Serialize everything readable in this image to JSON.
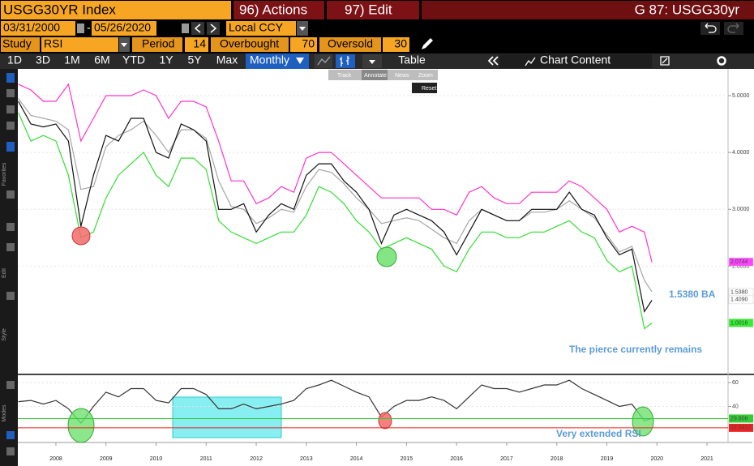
{
  "header": {
    "security": "USGG30YR Index",
    "actions": "96) Actions",
    "edit": "97) Edit",
    "page": "G 87: USGG30yr"
  },
  "controls": {
    "start_date": "03/31/2000",
    "separator": "-",
    "end_date": "05/26/2020",
    "currency": "Local CCY",
    "study_label": "Study",
    "study": "RSI",
    "period_label": "Period",
    "period": 14,
    "overbought_label": "Overbought",
    "overbought": 70,
    "oversold_label": "Oversold",
    "oversold": 30
  },
  "periods": [
    "1D",
    "3D",
    "1M",
    "6M",
    "YTD",
    "1Y",
    "5Y",
    "Max"
  ],
  "frequency": "Monthly",
  "table_button": "Table",
  "chart_content": "Chart Content",
  "chart_toolbar": [
    "Track",
    "Annotate",
    "News",
    "Zoom"
  ],
  "reset": "Reset",
  "side_labels": [
    "Favorites",
    "Edit",
    "Style",
    "Modes"
  ],
  "chart_data": [
    {
      "type": "line",
      "x": [
        2007.75,
        2008,
        2008.25,
        2008.5,
        2008.75,
        2009,
        2009.25,
        2009.5,
        2009.75,
        2010,
        2010.25,
        2010.5,
        2010.75,
        2011,
        2011.25,
        2011.5,
        2011.75,
        2012,
        2012.25,
        2012.5,
        2012.75,
        2013,
        2013.25,
        2013.5,
        2013.75,
        2014,
        2014.25,
        2014.5,
        2014.75,
        2015,
        2015.25,
        2015.5,
        2015.75,
        2016,
        2016.25,
        2016.5,
        2016.75,
        2017,
        2017.25,
        2017.5,
        2017.75,
        2018,
        2018.25,
        2018.5,
        2018.75,
        2019,
        2019.25,
        2019.5,
        2019.75,
        2020,
        2020.25,
        2020.4
      ],
      "xlim": [
        2007.74,
        2021.92
      ],
      "ylim": [
        0.11,
        5.47
      ],
      "yticks": [
        {
          "value": 5,
          "label": "5.0000"
        },
        {
          "value": 4,
          "label": "4.0000"
        },
        {
          "value": 3,
          "label": "3.0000"
        },
        {
          "value": 2,
          "label": "2.0000"
        }
      ],
      "series": [
        {
          "color": "#ff33cc",
          "values": [
            5.2,
            5.1,
            4.9,
            4.9,
            5.2,
            4.2,
            4.6,
            5.0,
            5.0,
            5.0,
            5.1,
            5.0,
            4.6,
            4.9,
            4.9,
            4.8,
            4.2,
            3.5,
            3.5,
            3.1,
            3.2,
            3.4,
            3.3,
            3.9,
            4.0,
            4.0,
            3.8,
            3.6,
            3.4,
            3.2,
            3.2,
            3.2,
            3.2,
            3.0,
            3.0,
            2.9,
            3.3,
            3.4,
            3.2,
            3.1,
            3.1,
            3.3,
            3.3,
            3.3,
            3.5,
            3.4,
            3.2,
            3.0,
            2.6,
            2.7,
            2.6,
            2.07
          ]
        },
        {
          "color": "#33dd33",
          "values": [
            4.7,
            4.2,
            4.3,
            4.2,
            3.6,
            2.5,
            2.6,
            3.2,
            3.6,
            3.8,
            4.0,
            3.6,
            3.4,
            3.9,
            3.9,
            3.7,
            2.8,
            2.6,
            2.5,
            2.4,
            2.5,
            2.6,
            2.6,
            2.9,
            3.4,
            3.3,
            3.1,
            2.8,
            2.6,
            2.3,
            2.4,
            2.5,
            2.4,
            2.3,
            2.0,
            1.9,
            2.3,
            2.6,
            2.6,
            2.5,
            2.5,
            2.6,
            2.6,
            2.7,
            2.8,
            2.6,
            2.5,
            2.1,
            1.9,
            2.0,
            0.9,
            1.0
          ]
        },
        {
          "color": "#a6a6a6",
          "values": [
            4.95,
            4.65,
            4.6,
            4.55,
            4.4,
            3.35,
            3.4,
            4.1,
            4.3,
            4.4,
            4.55,
            4.3,
            4.0,
            4.4,
            4.4,
            4.25,
            3.5,
            3.05,
            3.0,
            2.75,
            2.85,
            3.0,
            2.95,
            3.4,
            3.7,
            3.65,
            3.45,
            3.2,
            3.0,
            2.75,
            2.8,
            2.85,
            2.8,
            2.65,
            2.5,
            2.4,
            2.8,
            3.0,
            2.9,
            2.8,
            2.8,
            2.95,
            2.95,
            3.0,
            3.15,
            3.0,
            2.85,
            2.55,
            2.25,
            2.35,
            1.75,
            1.55
          ]
        },
        {
          "color": "#111111",
          "values": [
            4.9,
            4.5,
            4.45,
            4.5,
            4.2,
            2.7,
            3.6,
            4.3,
            4.2,
            4.6,
            4.6,
            4.0,
            3.9,
            4.5,
            4.4,
            4.2,
            3.0,
            3.0,
            3.1,
            2.6,
            2.9,
            3.1,
            3.0,
            3.6,
            3.8,
            3.8,
            3.5,
            3.3,
            3.0,
            2.4,
            2.9,
            3.0,
            2.9,
            2.8,
            2.6,
            2.2,
            2.6,
            3.0,
            2.9,
            2.8,
            2.8,
            3.0,
            3.0,
            3.0,
            3.3,
            3.0,
            2.9,
            2.5,
            2.2,
            2.3,
            1.2,
            1.4
          ]
        }
      ],
      "badges": [
        {
          "value": 2.0744,
          "color": "#ff44ff"
        },
        {
          "value": 1.538,
          "label": "1.5380",
          "color": "#ffffff"
        },
        {
          "value": 1.409,
          "label": "1.4090",
          "color": "#ffffff"
        },
        {
          "value": 1.0016,
          "color": "#33ee33"
        }
      ],
      "annotations": [
        "1.5380 BA",
        "The pierce currently remains"
      ]
    },
    {
      "type": "line",
      "x": [
        2007.75,
        2008,
        2008.25,
        2008.5,
        2008.75,
        2009,
        2009.25,
        2009.5,
        2009.75,
        2010,
        2010.25,
        2010.5,
        2010.75,
        2011,
        2011.25,
        2011.5,
        2011.75,
        2012,
        2012.25,
        2012.5,
        2012.75,
        2013,
        2013.25,
        2013.5,
        2013.75,
        2014,
        2014.25,
        2014.5,
        2014.75,
        2015,
        2015.25,
        2015.5,
        2015.75,
        2016,
        2016.25,
        2016.5,
        2016.75,
        2017,
        2017.25,
        2017.5,
        2017.75,
        2018,
        2018.25,
        2018.5,
        2018.75,
        2019,
        2019.25,
        2019.5,
        2019.75,
        2020,
        2020.25,
        2020.4
      ],
      "xlim": [
        2007.74,
        2021.92
      ],
      "xticks": [
        {
          "value": 2008.5,
          "label": "2008"
        },
        {
          "value": 2009.5,
          "label": "2009"
        },
        {
          "value": 2010.5,
          "label": "2010"
        },
        {
          "value": 2011.5,
          "label": "2011"
        },
        {
          "value": 2012.5,
          "label": "2012"
        },
        {
          "value": 2013.5,
          "label": "2013"
        },
        {
          "value": 2014.5,
          "label": "2014"
        },
        {
          "value": 2015.5,
          "label": "2015"
        },
        {
          "value": 2016.5,
          "label": "2016"
        },
        {
          "value": 2017.5,
          "label": "2017"
        },
        {
          "value": 2018.5,
          "label": "2018"
        },
        {
          "value": 2019.5,
          "label": "2019"
        },
        {
          "value": 2020.5,
          "label": "2020"
        },
        {
          "value": 2021.5,
          "label": "2021"
        }
      ],
      "ylim": [
        9.7,
        66.2
      ],
      "yticks": [
        60,
        40
      ],
      "series": [
        {
          "color": "#333333",
          "values": [
            44,
            45,
            42,
            45,
            38,
            26,
            40,
            52,
            48,
            55,
            55,
            45,
            43,
            55,
            55,
            50,
            38,
            38,
            42,
            38,
            40,
            42,
            45,
            55,
            58,
            62,
            57,
            52,
            48,
            31,
            40,
            45,
            45,
            48,
            45,
            38,
            48,
            58,
            55,
            55,
            52,
            55,
            58,
            58,
            62,
            55,
            50,
            45,
            40,
            42,
            28,
            30
          ]
        }
      ],
      "reference_lines": [
        {
          "value": 29.806,
          "color": "#33cc33"
        },
        {
          "value": 22.0412,
          "color": "#ee2222"
        }
      ],
      "annotations": [
        "Very extended RSI"
      ]
    }
  ]
}
